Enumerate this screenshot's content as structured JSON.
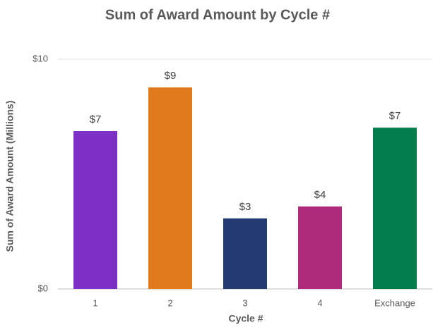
{
  "chart_data": {
    "type": "bar",
    "title": "Sum of Award Amount by Cycle #",
    "x_label": "Cycle #",
    "y_label": "Sum of Award Amount (Millions)",
    "categories": [
      "1",
      "2",
      "3",
      "4",
      "Exchange"
    ],
    "values": [
      6.87,
      8.77,
      3.07,
      3.59,
      7.02
    ],
    "value_labels": [
      "$7",
      "$9",
      "$3",
      "$4",
      "$7"
    ],
    "colors": [
      "#7e2fc4",
      "#e0791b",
      "#243a73",
      "#ae2a7a",
      "#047d4e"
    ],
    "ylim": [
      0,
      10
    ],
    "yticks": [
      {
        "value": 0,
        "label": "$0"
      },
      {
        "value": 10,
        "label": "$10"
      }
    ],
    "grid": true
  }
}
